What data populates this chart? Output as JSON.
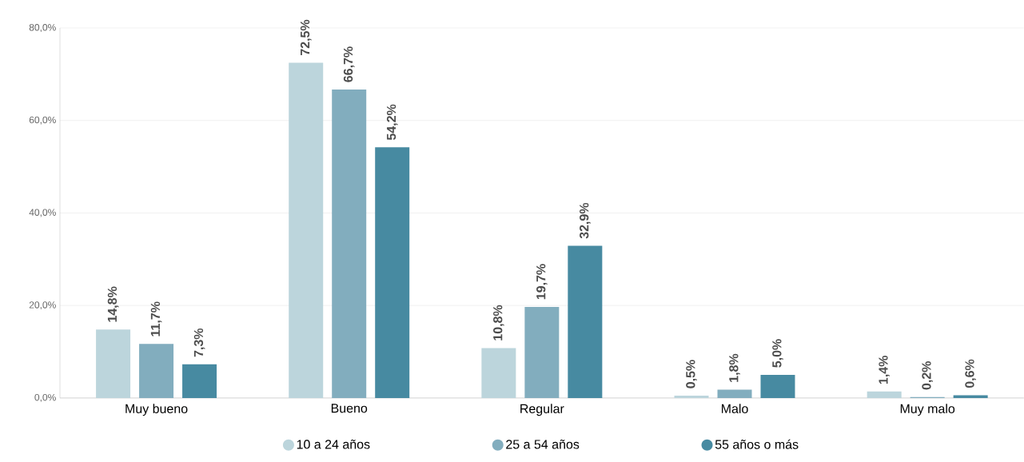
{
  "chart_data": {
    "type": "bar",
    "categories": [
      "Muy bueno",
      "Bueno",
      "Regular",
      "Malo",
      "Muy malo"
    ],
    "series": [
      {
        "name": "10 a 24 años",
        "color": "#bcd5dc",
        "values": [
          14.8,
          72.5,
          10.8,
          0.5,
          1.4
        ],
        "value_labels": [
          "14,8%",
          "72,5%",
          "10,8%",
          "0,5%",
          "1,4%"
        ]
      },
      {
        "name": "25 a 54 años",
        "color": "#82adbe",
        "values": [
          11.7,
          66.7,
          19.7,
          1.8,
          0.2
        ],
        "value_labels": [
          "11,7%",
          "66,7%",
          "19,7%",
          "1,8%",
          "0,2%"
        ]
      },
      {
        "name": "55 años o más",
        "color": "#478aa1",
        "values": [
          7.3,
          54.2,
          32.9,
          5.0,
          0.6
        ],
        "value_labels": [
          "7,3%",
          "54,2%",
          "32,9%",
          "5,0%",
          "0,6%"
        ]
      }
    ],
    "ylim": [
      0,
      80
    ],
    "yticks": [
      {
        "value": 0,
        "label": "0,0%"
      },
      {
        "value": 20,
        "label": "20,0%"
      },
      {
        "value": 40,
        "label": "40,0%"
      },
      {
        "value": 60,
        "label": "60,0%"
      },
      {
        "value": 80,
        "label": "80,0%"
      }
    ],
    "grid": "y",
    "legend": "bottom"
  }
}
